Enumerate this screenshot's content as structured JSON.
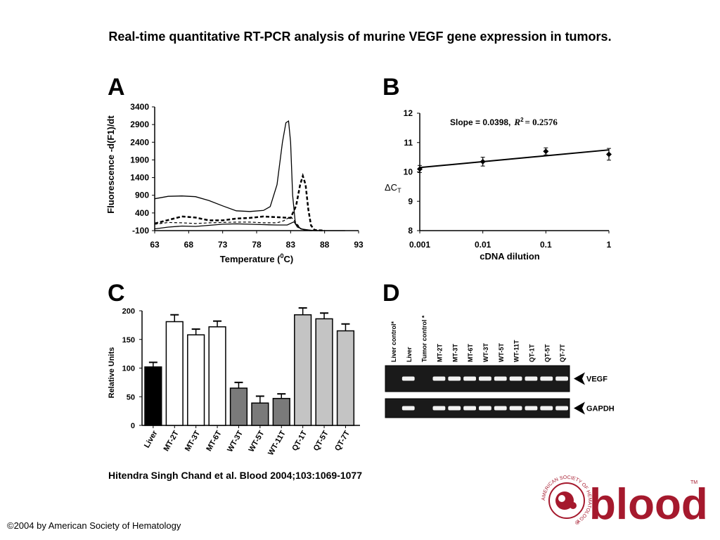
{
  "title": "Real-time quantitative RT-PCR analysis of murine VEGF gene expression in tumors.",
  "panels": {
    "a": "A",
    "b": "B",
    "c": "C",
    "d": "D"
  },
  "citation": "Hitendra Singh Chand et al. Blood 2004;103:1069-1077",
  "copyright": "©2004 by American Society of Hematology",
  "logo": {
    "text": "blood",
    "ring_text": "AMERICAN SOCIETY OF HEMATOLOGY",
    "tm": "TM",
    "reg": "®"
  },
  "colors": {
    "logo_red": "#a5192d",
    "gel_bg": "#1a1a1a",
    "bar_black": "#000000",
    "bar_white": "#ffffff",
    "bar_darkgray": "#7a7a7a",
    "bar_lightgray": "#c4c4c4"
  },
  "chart_data": [
    {
      "panel": "A",
      "type": "line",
      "xlabel": "Temperature (",
      "xlabel_sup": "0",
      "xlabel_end": "C)",
      "ylabel": "Fluorescence -d(F1)/dt",
      "xlim": [
        63,
        93
      ],
      "ylim": [
        -100,
        3400
      ],
      "xticks": [
        63,
        68,
        73,
        78,
        83,
        88,
        93
      ],
      "yticks": [
        -100,
        400,
        900,
        1400,
        1900,
        2400,
        2900,
        3400
      ],
      "series": [
        {
          "style": "solid",
          "points": [
            [
              63,
              800
            ],
            [
              65,
              870
            ],
            [
              67,
              880
            ],
            [
              69,
              860
            ],
            [
              71,
              750
            ],
            [
              73,
              600
            ],
            [
              75,
              460
            ],
            [
              77,
              440
            ],
            [
              79,
              470
            ],
            [
              80,
              580
            ],
            [
              81,
              1200
            ],
            [
              81.8,
              2400
            ],
            [
              82.3,
              2950
            ],
            [
              82.7,
              3000
            ],
            [
              83,
              2400
            ],
            [
              83.3,
              900
            ],
            [
              83.7,
              100
            ],
            [
              84.5,
              -50
            ],
            [
              86,
              -90
            ],
            [
              87,
              -100
            ]
          ]
        },
        {
          "style": "dashed-bold",
          "points": [
            [
              63,
              100
            ],
            [
              65,
              200
            ],
            [
              67,
              300
            ],
            [
              69,
              270
            ],
            [
              71,
              190
            ],
            [
              73,
              190
            ],
            [
              75,
              240
            ],
            [
              77,
              260
            ],
            [
              79,
              300
            ],
            [
              81,
              280
            ],
            [
              83,
              260
            ],
            [
              83.8,
              600
            ],
            [
              84.4,
              1200
            ],
            [
              84.8,
              1450
            ],
            [
              85.2,
              1200
            ],
            [
              85.6,
              500
            ],
            [
              86,
              50
            ],
            [
              86.5,
              -80
            ],
            [
              88,
              -100
            ]
          ]
        },
        {
          "style": "dashed",
          "points": [
            [
              63,
              80
            ],
            [
              65,
              130
            ],
            [
              67,
              120
            ],
            [
              69,
              100
            ],
            [
              71,
              120
            ],
            [
              73,
              130
            ],
            [
              75,
              140
            ],
            [
              77,
              140
            ],
            [
              79,
              120
            ],
            [
              81,
              120
            ],
            [
              82,
              180
            ],
            [
              83,
              300
            ],
            [
              83.7,
              150
            ],
            [
              84.5,
              -50
            ],
            [
              85.5,
              -100
            ],
            [
              88,
              -100
            ]
          ]
        },
        {
          "style": "solid",
          "points": [
            [
              63,
              -50
            ],
            [
              65,
              0
            ],
            [
              67,
              30
            ],
            [
              69,
              20
            ],
            [
              71,
              50
            ],
            [
              73,
              80
            ],
            [
              75,
              90
            ],
            [
              77,
              80
            ],
            [
              79,
              70
            ],
            [
              81,
              60
            ],
            [
              82.5,
              60
            ],
            [
              83.5,
              150
            ],
            [
              84,
              0
            ],
            [
              85,
              -80
            ],
            [
              87,
              -100
            ],
            [
              89,
              -100
            ],
            [
              91,
              -100
            ]
          ]
        }
      ]
    },
    {
      "panel": "B",
      "type": "scatter",
      "xlabel": "cDNA dilution",
      "ylabel": "ΔC",
      "ylabel_sub": "T",
      "xscale": "log",
      "xlim": [
        0.001,
        1
      ],
      "ylim": [
        8,
        12
      ],
      "xticks": [
        0.001,
        0.01,
        0.1,
        1
      ],
      "xticklabels": [
        "0.001",
        "0.01",
        "0.1",
        "1"
      ],
      "yticks": [
        8,
        9,
        10,
        11,
        12
      ],
      "annotation": {
        "slope": "Slope = 0.0398,",
        "r2_label": "R",
        "r2_sup": "2",
        "r2_value": "= 0.2576"
      },
      "x": [
        0.001,
        0.01,
        0.1,
        1
      ],
      "y": [
        10.1,
        10.35,
        10.7,
        10.6
      ],
      "err": [
        0.12,
        0.15,
        0.12,
        0.2
      ],
      "fit": {
        "x": [
          0.001,
          1
        ],
        "y": [
          10.15,
          10.75
        ]
      }
    },
    {
      "panel": "C",
      "type": "bar",
      "ylabel": "Relative Units",
      "ylim": [
        0,
        200
      ],
      "yticks": [
        0,
        50,
        100,
        150,
        200
      ],
      "categories": [
        "Liver",
        "MT-2T",
        "MT-3T",
        "MT-6T",
        "WT-3T",
        "WT-5T",
        "WT-11T",
        "QT-1T",
        "QT-5T",
        "QT-7T"
      ],
      "values": [
        102,
        181,
        158,
        172,
        65,
        39,
        47,
        193,
        186,
        165
      ],
      "errors": [
        8,
        12,
        10,
        10,
        10,
        12,
        8,
        12,
        10,
        12
      ],
      "fills": [
        "#000000",
        "#ffffff",
        "#ffffff",
        "#ffffff",
        "#7a7a7a",
        "#7a7a7a",
        "#7a7a7a",
        "#c4c4c4",
        "#c4c4c4",
        "#c4c4c4"
      ]
    },
    {
      "panel": "D",
      "type": "table",
      "lanes": [
        "Liver control*",
        "Liver",
        "Tumor control *",
        "MT-2T",
        "MT-3T",
        "MT-6T",
        "WT-3T",
        "WT-5T",
        "WT-11T",
        "QT-1T",
        "QT-5T",
        "QT-7T"
      ],
      "gels": [
        {
          "label": "VEGF",
          "band_on": [
            false,
            true,
            false,
            true,
            true,
            true,
            true,
            true,
            true,
            true,
            true,
            true
          ]
        },
        {
          "label": "GAPDH",
          "band_on": [
            false,
            true,
            false,
            true,
            true,
            true,
            true,
            true,
            true,
            true,
            true,
            true
          ]
        }
      ]
    }
  ]
}
